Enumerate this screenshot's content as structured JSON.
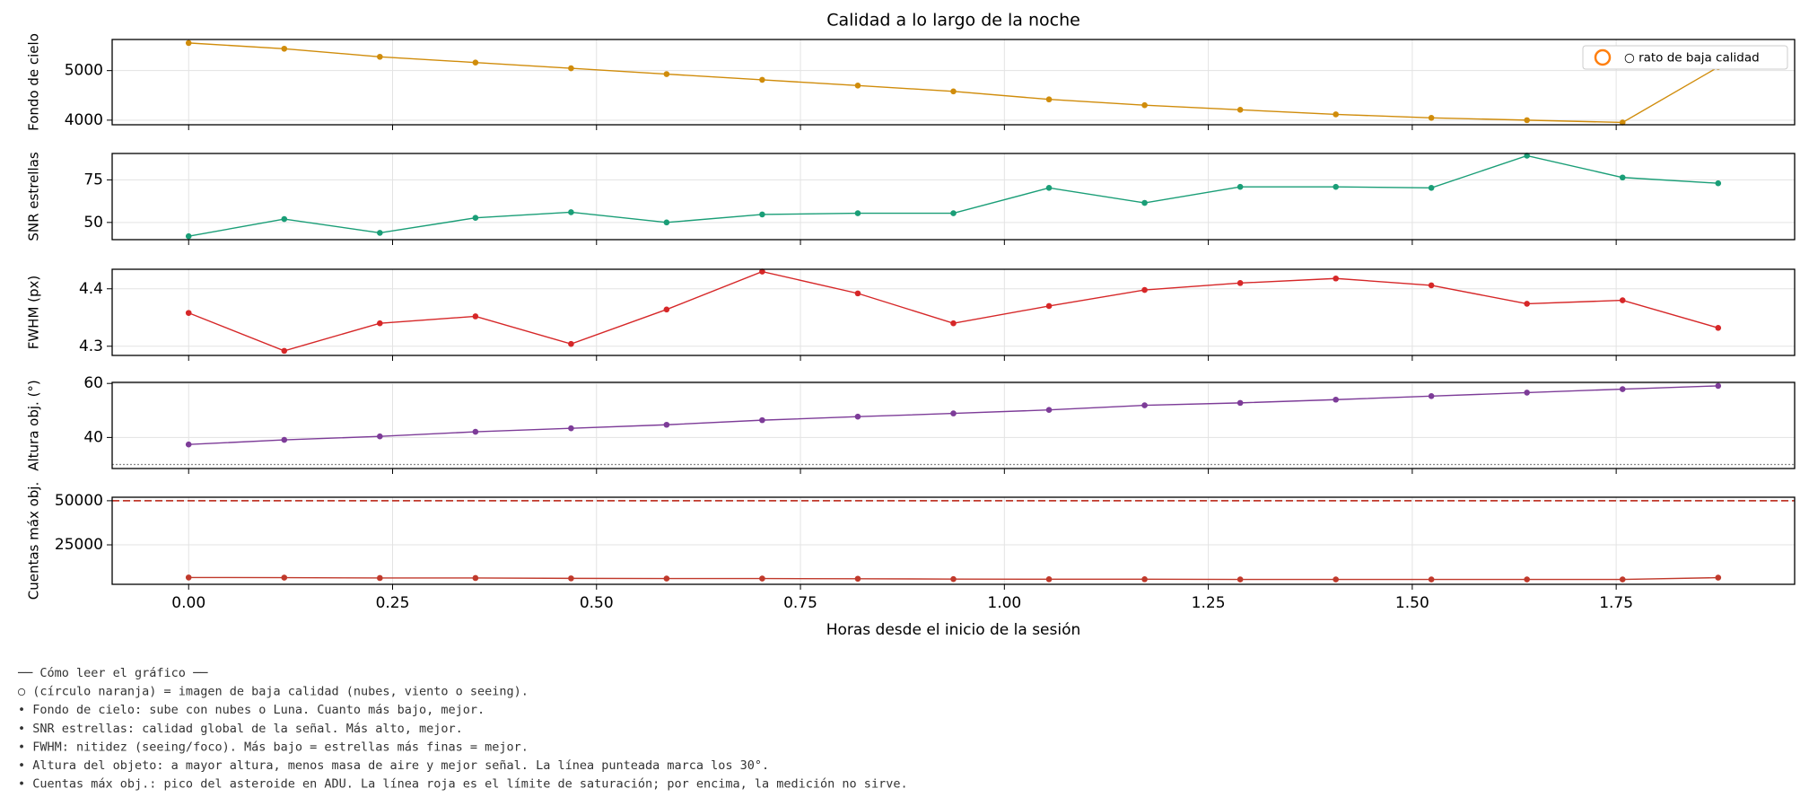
{
  "chart_data": [
    {
      "type": "line",
      "title": "Calidad a lo largo de la noche",
      "ylabel": "Fondo de cielo",
      "color": "#d08c0b",
      "x": [
        0,
        0.1172,
        0.2344,
        0.3516,
        0.4688,
        0.5859,
        0.7031,
        0.8203,
        0.9375,
        1.0547,
        1.1719,
        1.2891,
        1.4063,
        1.5234,
        1.6406,
        1.7578,
        1.875
      ],
      "values": [
        5558,
        5442,
        5279,
        5163,
        5047,
        4930,
        4814,
        4698,
        4581,
        4419,
        4302,
        4209,
        4116,
        4047,
        4000,
        3953,
        5070
      ],
      "xlim": [
        -0.09375,
        1.96875
      ],
      "ylim": [
        3907,
        5628
      ],
      "yticks": [
        4000,
        5000
      ],
      "grid": true,
      "legend": {
        "label": "○ rato de baja calidad",
        "color": "#ff7f0e",
        "loc": "upper right"
      }
    },
    {
      "type": "line",
      "ylabel": "SNR estrellas",
      "color": "#1a9e77",
      "x": [
        0,
        0.1172,
        0.2344,
        0.3516,
        0.4688,
        0.5859,
        0.7031,
        0.8203,
        0.9375,
        1.0547,
        1.1719,
        1.2891,
        1.4063,
        1.5234,
        1.6406,
        1.7578,
        1.875
      ],
      "values": [
        41.9,
        52,
        43.9,
        52.7,
        56,
        50,
        54.7,
        55.4,
        55.4,
        70.3,
        61.5,
        70.9,
        70.9,
        70.3,
        89.2,
        76.4,
        73
      ],
      "xlim": [
        -0.09375,
        1.96875
      ],
      "ylim": [
        39.9,
        90.5
      ],
      "yticks": [
        50,
        75
      ],
      "grid": true
    },
    {
      "type": "line",
      "ylabel": "FWHM (px)",
      "color": "#d62728",
      "x": [
        0,
        0.1172,
        0.2344,
        0.3516,
        0.4688,
        0.5859,
        0.7031,
        0.8203,
        0.9375,
        1.0547,
        1.1719,
        1.2891,
        1.4063,
        1.5234,
        1.6406,
        1.7578,
        1.875
      ],
      "values": [
        4.358,
        4.292,
        4.34,
        4.352,
        4.304,
        4.364,
        4.43,
        4.392,
        4.34,
        4.37,
        4.398,
        4.41,
        4.418,
        4.406,
        4.374,
        4.38,
        4.332
      ],
      "xlim": [
        -0.09375,
        1.96875
      ],
      "ylim": [
        4.284,
        4.434
      ],
      "yticks": [
        4.3,
        4.4
      ],
      "grid": true
    },
    {
      "type": "line",
      "ylabel": "Altura obj. (°)",
      "color": "#7d3c98",
      "x": [
        0,
        0.1172,
        0.2344,
        0.3516,
        0.4688,
        0.5859,
        0.7031,
        0.8203,
        0.9375,
        1.0547,
        1.1719,
        1.2891,
        1.4063,
        1.5234,
        1.6406,
        1.7578,
        1.875
      ],
      "values": [
        37.4,
        39.1,
        40.4,
        42.1,
        43.4,
        44.7,
        46.4,
        47.7,
        48.9,
        50.2,
        51.9,
        52.8,
        54,
        55.3,
        56.6,
        57.9,
        59.1
      ],
      "xlim": [
        -0.09375,
        1.96875
      ],
      "ylim": [
        28.5,
        60.4
      ],
      "yticks": [
        40,
        60
      ],
      "grid": true,
      "reference_line": {
        "value": 30,
        "style": "dotted",
        "color": "#888888"
      }
    },
    {
      "type": "line",
      "ylabel": "Cuentas máx obj.",
      "xlabel": "Horas desde el inicio de la sesión",
      "color": "#c0392b",
      "x": [
        0,
        0.1172,
        0.2344,
        0.3516,
        0.4688,
        0.5859,
        0.7031,
        0.8203,
        0.9375,
        1.0547,
        1.1719,
        1.2891,
        1.4063,
        1.5234,
        1.6406,
        1.7578,
        1.875
      ],
      "values": [
        6500,
        6400,
        6200,
        6200,
        6000,
        5900,
        5900,
        5800,
        5600,
        5500,
        5500,
        5400,
        5400,
        5400,
        5400,
        5400,
        6400
      ],
      "xlim": [
        -0.09375,
        1.96875
      ],
      "ylim": [
        2630,
        51974
      ],
      "yticks": [
        25000,
        50000
      ],
      "xticks": [
        {
          "value": 0,
          "label": "0.00"
        },
        0.25,
        {
          "value": 0.5,
          "label": "0.50"
        },
        0.75,
        {
          "value": 1,
          "label": "1.00"
        },
        1.25,
        {
          "value": 1.5,
          "label": "1.50"
        },
        1.75
      ],
      "grid": true,
      "reference_line": {
        "value": 50000,
        "style": "dashed",
        "color": "#c0392b"
      }
    }
  ],
  "notes": [
    "── Cómo leer el gráfico ──",
    "○ (círculo naranja) = imagen de baja calidad (nubes, viento o seeing).",
    "• Fondo de cielo: sube con nubes o Luna. Cuanto más bajo, mejor.",
    "• SNR estrellas: calidad global de la señal. Más alto, mejor.",
    "• FWHM: nitidez (seeing/foco). Más bajo = estrellas más finas = mejor.",
    "• Altura del objeto: a mayor altura, menos masa de aire y mejor señal. La línea punteada marca los 30°.",
    "• Cuentas máx obj.: pico del asteroide en ADU. La línea roja es el límite de saturación; por encima, la medición no sirve."
  ]
}
